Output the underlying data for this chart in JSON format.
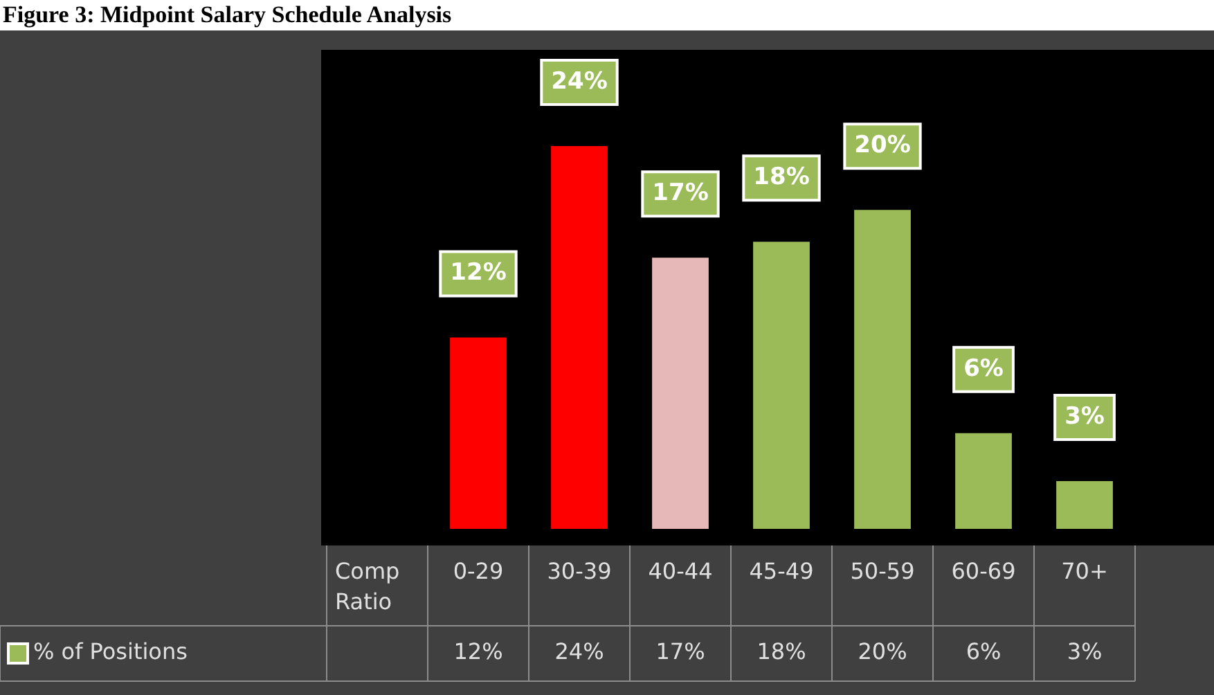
{
  "chart_data": {
    "type": "bar",
    "title": "Figure 3: Midpoint Salary Schedule Analysis",
    "xlabel": "Comp Ratio",
    "categories": [
      "0-29",
      "30-39",
      "40-44",
      "45-49",
      "50-59",
      "60-69",
      "70+"
    ],
    "series": [
      {
        "name": "% of Positions",
        "color": "#9bbb59",
        "colors": [
          "#ff0000",
          "#ff0000",
          "#e6b8b7",
          "#9bbb59",
          "#9bbb59",
          "#9bbb59",
          "#9bbb59"
        ],
        "values": [
          12,
          24,
          17,
          18,
          20,
          6,
          3
        ],
        "value_labels": [
          "12%",
          "24%",
          "17%",
          "18%",
          "20%",
          "6%",
          "3%"
        ]
      }
    ],
    "legend": "bottom"
  }
}
